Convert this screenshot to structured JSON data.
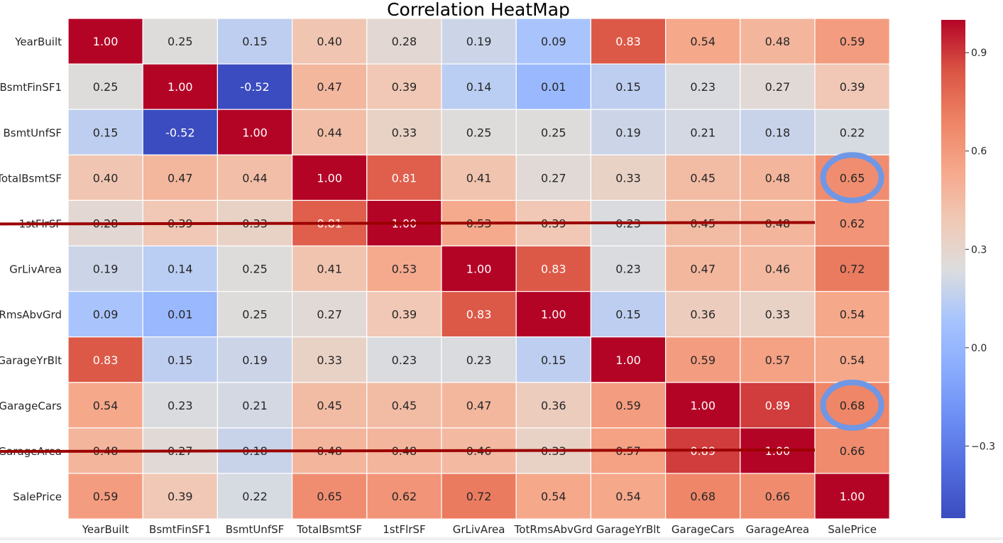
{
  "chart_data": {
    "type": "heatmap",
    "title": "Correlation HeatMap",
    "xlabel": "",
    "ylabel": "",
    "rows": [
      "YearBuilt",
      "BsmtFinSF1",
      "BsmtUnfSF",
      "TotalBsmtSF",
      "1stFlrSF",
      "GrLivArea",
      "TotRmsAbvGrd",
      "GarageYrBlt",
      "GarageCars",
      "GarageArea",
      "SalePrice"
    ],
    "row_labels_visible": [
      "YearBuilt",
      "BsmtFinSF1",
      "BsmtUnfSF",
      "TotalBsmtSF",
      "1stFlrSF",
      "GrLivArea",
      "tRmsAbvGrd",
      "GarageYrBlt",
      "GarageCars",
      "GarageArea",
      "SalePrice"
    ],
    "columns": [
      "YearBuilt",
      "BsmtFinSF1",
      "BsmtUnfSF",
      "TotalBsmtSF",
      "1stFlrSF",
      "GrLivArea",
      "TotRmsAbvGrd",
      "GarageYrBlt",
      "GarageCars",
      "GarageArea",
      "SalePrice"
    ],
    "values": [
      [
        1.0,
        0.25,
        0.15,
        0.4,
        0.28,
        0.19,
        0.09,
        0.83,
        0.54,
        0.48,
        0.59
      ],
      [
        0.25,
        1.0,
        -0.52,
        0.47,
        0.39,
        0.14,
        0.01,
        0.15,
        0.23,
        0.27,
        0.39
      ],
      [
        0.15,
        -0.52,
        1.0,
        0.44,
        0.33,
        0.25,
        0.25,
        0.19,
        0.21,
        0.18,
        0.22
      ],
      [
        0.4,
        0.47,
        0.44,
        1.0,
        0.81,
        0.41,
        0.27,
        0.33,
        0.45,
        0.48,
        0.65
      ],
      [
        0.28,
        0.39,
        0.33,
        0.81,
        1.0,
        0.53,
        0.39,
        0.23,
        0.45,
        0.48,
        0.62
      ],
      [
        0.19,
        0.14,
        0.25,
        0.41,
        0.53,
        1.0,
        0.83,
        0.23,
        0.47,
        0.46,
        0.72
      ],
      [
        0.09,
        0.01,
        0.25,
        0.27,
        0.39,
        0.83,
        1.0,
        0.15,
        0.36,
        0.33,
        0.54
      ],
      [
        0.83,
        0.15,
        0.19,
        0.33,
        0.23,
        0.23,
        0.15,
        1.0,
        0.59,
        0.57,
        0.54
      ],
      [
        0.54,
        0.23,
        0.21,
        0.45,
        0.45,
        0.47,
        0.36,
        0.59,
        1.0,
        0.89,
        0.68
      ],
      [
        0.48,
        0.27,
        0.18,
        0.48,
        0.48,
        0.46,
        0.33,
        0.57,
        0.89,
        1.0,
        0.66
      ],
      [
        0.59,
        0.39,
        0.22,
        0.65,
        0.62,
        0.72,
        0.54,
        0.54,
        0.68,
        0.66,
        1.0
      ]
    ],
    "colormap": "coolwarm",
    "color_range": [
      -0.52,
      1.0
    ],
    "colorbar_ticks": [
      0.9,
      0.6,
      0.3,
      0.0,
      -0.3
    ],
    "colorbar_tick_labels": [
      "0.9",
      "0.6",
      "0.3",
      "0.0",
      "−0.3"
    ],
    "annotations": {
      "circled_cells": [
        {
          "row": "TotalBsmtSF",
          "col": "SalePrice"
        },
        {
          "row": "GarageCars",
          "col": "SalePrice"
        }
      ],
      "circle_color": "#6f97e6",
      "struck_rows": [
        "1stFlrSF",
        "GarageArea"
      ],
      "strike_color": "#9b0000"
    }
  }
}
